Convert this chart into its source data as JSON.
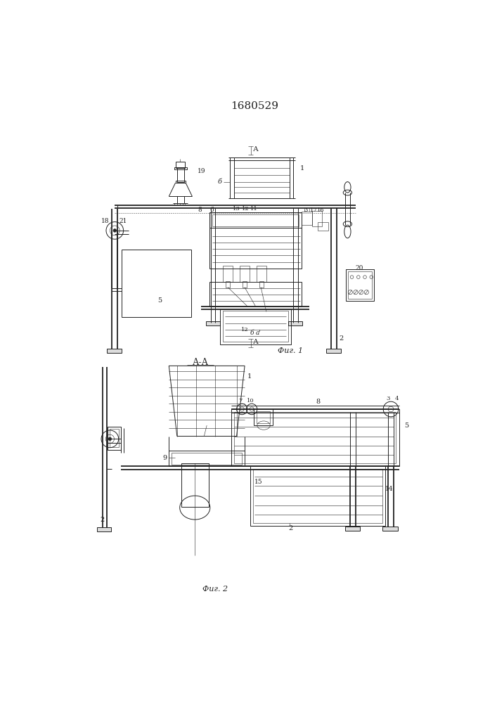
{
  "title": "1680529",
  "fig1_label": "Фиг. 1",
  "fig2_label": "Фиг. 2",
  "section_label": "А-А",
  "bg_color": "#ffffff",
  "lc": "#222222",
  "lw": 0.7,
  "lw_t": 0.4,
  "lw_k": 1.3
}
